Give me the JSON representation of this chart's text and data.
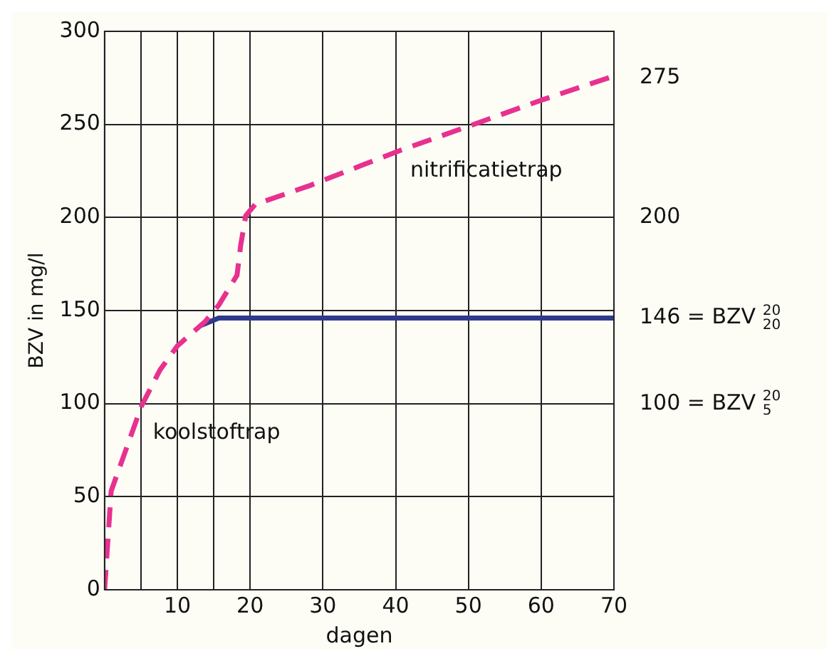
{
  "chart_data": {
    "type": "line",
    "xlabel": "dagen",
    "ylabel": "BZV in mg/l",
    "xlim": [
      0,
      70
    ],
    "ylim": [
      0,
      300
    ],
    "xticks": [
      {
        "value": 0,
        "label": null
      },
      {
        "value": 5,
        "label": null
      },
      10,
      {
        "value": 15,
        "label": null
      },
      20,
      30,
      40,
      50,
      60,
      70
    ],
    "yticks": [
      0,
      50,
      100,
      150,
      200,
      250,
      300
    ],
    "grid": true,
    "marker": "none",
    "series": [
      {
        "color": "#e8318f",
        "line_style": "dashed",
        "x": [
          0,
          0.9,
          5.1,
          7.6,
          10,
          13.8,
          15.7,
          18.2,
          18.7,
          19.4,
          20.7,
          28.1,
          40.6,
          50,
          60,
          70
        ],
        "values": [
          0,
          53,
          99,
          118,
          131,
          144,
          153,
          169,
          185,
          201,
          207,
          217,
          236,
          249,
          263,
          276
        ]
      },
      {
        "color": "#2e3a8c",
        "line_style": "solid",
        "x": [
          13.2,
          15.7,
          19.4,
          70
        ],
        "values": [
          142,
          146,
          146,
          146
        ]
      }
    ],
    "annotations": [
      "koolstoftrap",
      "nitrificatietrap",
      {
        "text": "275",
        "x": 70,
        "y": 275
      },
      "200",
      {
        "text": "146 = BZV $^{20}$$_{20}$",
        "x": 70,
        "y": 146
      },
      "100 = BZV $^{20}$$_{5}$"
    ]
  }
}
